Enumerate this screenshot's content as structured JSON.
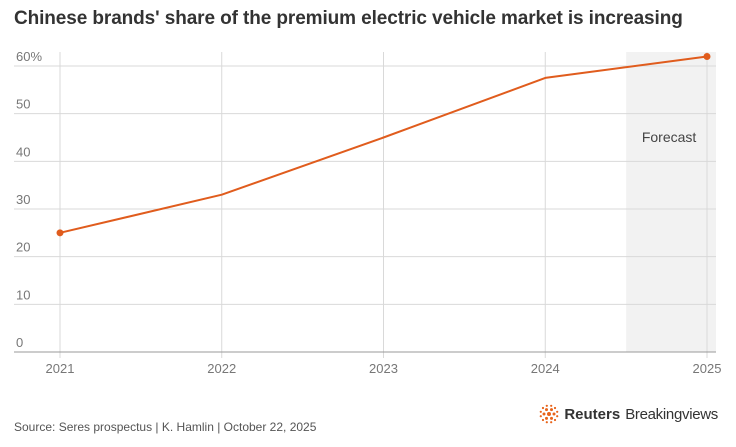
{
  "title": "Chinese brands' share of the premium electric vehicle market is increasing",
  "source": "Source: Seres prospectus | K. Hamlin | October 22, 2025",
  "logo": {
    "name_bold": "Reuters",
    "name_regular": "Breakingviews",
    "icon": "reuters-dots-icon",
    "color": "#e8631a"
  },
  "chart_data": {
    "type": "line",
    "x": [
      "2021",
      "2022",
      "2023",
      "2024",
      "2025"
    ],
    "series": [
      {
        "values": [
          25,
          33,
          45,
          57.5,
          62
        ]
      }
    ],
    "y_ticks": [
      "0",
      "10",
      "20",
      "30",
      "40",
      "50",
      "60%"
    ],
    "ylim": [
      0,
      60
    ],
    "grid": true,
    "annotation": {
      "label": "Forecast",
      "x_from": "2024.5",
      "x_to": "2025"
    },
    "colors": {
      "line": "#e05c1d",
      "grid": "#d9d9d9",
      "shade": "#f2f2f2",
      "axis": "#999999"
    }
  }
}
